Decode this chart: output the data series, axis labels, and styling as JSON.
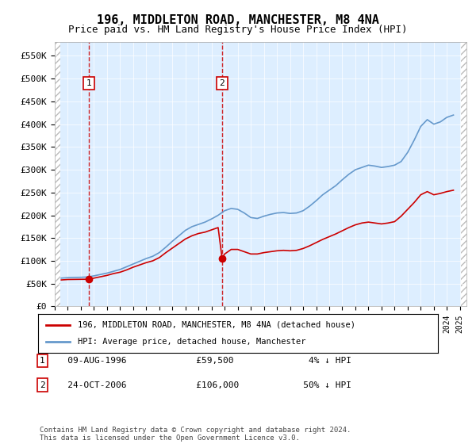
{
  "title": "196, MIDDLETON ROAD, MANCHESTER, M8 4NA",
  "subtitle": "Price paid vs. HM Land Registry's House Price Index (HPI)",
  "ylabel_ticks": [
    "£0",
    "£50K",
    "£100K",
    "£150K",
    "£200K",
    "£250K",
    "£300K",
    "£350K",
    "£400K",
    "£450K",
    "£500K",
    "£550K"
  ],
  "ytick_values": [
    0,
    50000,
    100000,
    150000,
    200000,
    250000,
    300000,
    350000,
    400000,
    450000,
    500000,
    550000
  ],
  "ylim": [
    0,
    580000
  ],
  "xlim_start": 1994.0,
  "xlim_end": 2025.5,
  "sale1_x": 1996.6,
  "sale1_y": 59500,
  "sale1_label": "1",
  "sale2_x": 2006.8,
  "sale2_y": 106000,
  "sale2_label": "2",
  "sale_color": "#cc0000",
  "hpi_color": "#6699cc",
  "dashed_color": "#cc0000",
  "bg_plot": "#ddeeff",
  "legend_line1": "196, MIDDLETON ROAD, MANCHESTER, M8 4NA (detached house)",
  "legend_line2": "HPI: Average price, detached house, Manchester",
  "note1_num": "1",
  "note1_text": "   09-AUG-1996             £59,500              4% ↓ HPI",
  "note2_num": "2",
  "note2_text": "   24-OCT-2006             £106,000            50% ↓ HPI",
  "footer": "Contains HM Land Registry data © Crown copyright and database right 2024.\nThis data is licensed under the Open Government Licence v3.0.",
  "hpi_data_x": [
    1994.5,
    1995.0,
    1995.5,
    1996.0,
    1996.5,
    1997.0,
    1997.5,
    1998.0,
    1998.5,
    1999.0,
    1999.5,
    2000.0,
    2000.5,
    2001.0,
    2001.5,
    2002.0,
    2002.5,
    2003.0,
    2003.5,
    2004.0,
    2004.5,
    2005.0,
    2005.5,
    2006.0,
    2006.5,
    2007.0,
    2007.5,
    2008.0,
    2008.5,
    2009.0,
    2009.5,
    2010.0,
    2010.5,
    2011.0,
    2011.5,
    2012.0,
    2012.5,
    2013.0,
    2013.5,
    2014.0,
    2014.5,
    2015.0,
    2015.5,
    2016.0,
    2016.5,
    2017.0,
    2017.5,
    2018.0,
    2018.5,
    2019.0,
    2019.5,
    2020.0,
    2020.5,
    2021.0,
    2021.5,
    2022.0,
    2022.5,
    2023.0,
    2023.5,
    2024.0,
    2024.5
  ],
  "hpi_data_y": [
    62000,
    63000,
    63500,
    63800,
    64500,
    67000,
    70000,
    73000,
    77000,
    81000,
    87000,
    93000,
    99000,
    105000,
    110000,
    118000,
    130000,
    143000,
    155000,
    167000,
    175000,
    180000,
    185000,
    192000,
    200000,
    210000,
    215000,
    213000,
    205000,
    195000,
    193000,
    198000,
    202000,
    205000,
    206000,
    204000,
    205000,
    210000,
    220000,
    232000,
    245000,
    255000,
    265000,
    278000,
    290000,
    300000,
    305000,
    310000,
    308000,
    305000,
    307000,
    310000,
    318000,
    338000,
    365000,
    395000,
    410000,
    400000,
    405000,
    415000,
    420000
  ],
  "price_data_x": [
    1994.5,
    1995.0,
    1995.5,
    1996.0,
    1996.6,
    1997.0,
    1997.5,
    1998.0,
    1998.5,
    1999.0,
    1999.5,
    2000.0,
    2000.5,
    2001.0,
    2001.5,
    2002.0,
    2002.5,
    2003.0,
    2003.5,
    2004.0,
    2004.5,
    2005.0,
    2005.5,
    2006.0,
    2006.5,
    2006.8,
    2007.0,
    2007.5,
    2008.0,
    2008.5,
    2009.0,
    2009.5,
    2010.0,
    2010.5,
    2011.0,
    2011.5,
    2012.0,
    2012.5,
    2013.0,
    2013.5,
    2014.0,
    2014.5,
    2015.0,
    2015.5,
    2016.0,
    2016.5,
    2017.0,
    2017.5,
    2018.0,
    2018.5,
    2019.0,
    2019.5,
    2020.0,
    2020.5,
    2021.0,
    2021.5,
    2022.0,
    2022.5,
    2023.0,
    2023.5,
    2024.0,
    2024.5
  ],
  "price_data_y": [
    58000,
    59000,
    59200,
    59400,
    59500,
    62000,
    65000,
    68000,
    72000,
    75000,
    80000,
    86000,
    91000,
    96000,
    100000,
    107000,
    118000,
    128000,
    138000,
    148000,
    155000,
    160000,
    163000,
    168000,
    173000,
    106000,
    115000,
    125000,
    125000,
    120000,
    115000,
    115000,
    118000,
    120000,
    122000,
    123000,
    122000,
    123000,
    127000,
    133000,
    140000,
    147000,
    153000,
    159000,
    166000,
    173000,
    179000,
    183000,
    185000,
    183000,
    181000,
    183000,
    186000,
    198000,
    213000,
    228000,
    245000,
    252000,
    245000,
    248000,
    252000,
    255000
  ]
}
